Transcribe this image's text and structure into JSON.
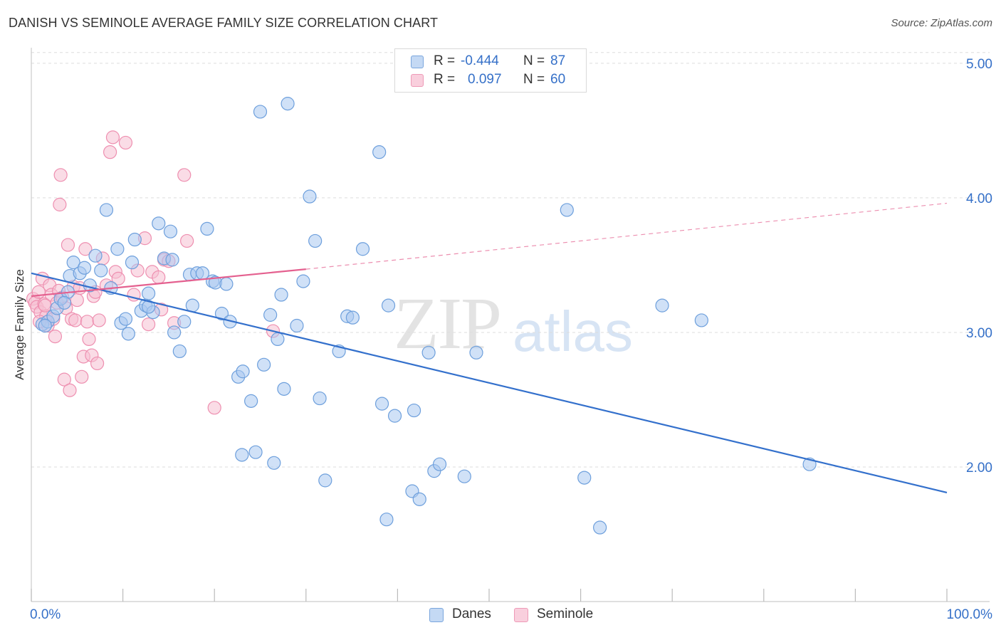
{
  "header": {
    "title": "DANISH VS SEMINOLE AVERAGE FAMILY SIZE CORRELATION CHART",
    "source": "Source: ZipAtlas.com"
  },
  "watermark": {
    "zip": "ZIP",
    "atlas": "atlas"
  },
  "legend": {
    "rows": [
      {
        "r_label": "R =",
        "r_value": "-0.444",
        "n_label": "N =",
        "n_value": "87"
      },
      {
        "r_label": "R =",
        "r_value": "0.097",
        "n_label": "N =",
        "n_value": "60"
      }
    ],
    "bottom": [
      "Danes",
      "Seminole"
    ]
  },
  "colors": {
    "danes_fill": "#a9c8f0",
    "danes_stroke": "#6d9fdc",
    "danes_line": "#3370cc",
    "seminole_fill": "#f6bfd2",
    "seminole_stroke": "#ee8fb0",
    "seminole_line": "#e4608f",
    "tick_label": "#3570c8"
  },
  "chart_data": {
    "type": "scatter",
    "title": "DANISH VS SEMINOLE AVERAGE FAMILY SIZE CORRELATION CHART",
    "xlabel": "",
    "ylabel": "Average Family Size",
    "xlim": [
      0,
      100
    ],
    "ylim": [
      1.0,
      5.1
    ],
    "x_tick_labels": [
      "0.0%",
      "100.0%"
    ],
    "y_ticks": [
      2.0,
      3.0,
      4.0,
      5.0
    ],
    "y_tick_labels": [
      "2.00",
      "3.00",
      "4.00",
      "5.00"
    ],
    "grid": true,
    "series": [
      {
        "name": "Danes",
        "r": -0.444,
        "n": 87,
        "trend": {
          "x": [
            0,
            100
          ],
          "y": [
            3.44,
            1.81
          ],
          "dashed_from": null
        },
        "points": [
          [
            1.2,
            3.06
          ],
          [
            1.8,
            3.08
          ],
          [
            2.4,
            3.12
          ],
          [
            2.8,
            3.18
          ],
          [
            3.2,
            3.25
          ],
          [
            4.0,
            3.3
          ],
          [
            1.5,
            3.05
          ],
          [
            3.6,
            3.22
          ],
          [
            4.2,
            3.42
          ],
          [
            4.6,
            3.52
          ],
          [
            5.3,
            3.44
          ],
          [
            5.8,
            3.48
          ],
          [
            6.4,
            3.35
          ],
          [
            7.0,
            3.57
          ],
          [
            7.6,
            3.46
          ],
          [
            8.2,
            3.91
          ],
          [
            8.7,
            3.33
          ],
          [
            9.4,
            3.62
          ],
          [
            9.8,
            3.07
          ],
          [
            10.3,
            3.1
          ],
          [
            10.6,
            2.99
          ],
          [
            11.0,
            3.52
          ],
          [
            11.3,
            3.69
          ],
          [
            12.0,
            3.16
          ],
          [
            12.5,
            3.2
          ],
          [
            12.8,
            3.29
          ],
          [
            13.3,
            3.15
          ],
          [
            13.9,
            3.81
          ],
          [
            14.5,
            3.55
          ],
          [
            15.2,
            3.75
          ],
          [
            15.4,
            3.54
          ],
          [
            15.6,
            3.0
          ],
          [
            16.2,
            2.86
          ],
          [
            16.7,
            3.08
          ],
          [
            17.3,
            3.43
          ],
          [
            17.6,
            3.2
          ],
          [
            18.1,
            3.44
          ],
          [
            18.7,
            3.44
          ],
          [
            19.2,
            3.77
          ],
          [
            19.8,
            3.38
          ],
          [
            20.1,
            3.37
          ],
          [
            20.8,
            3.14
          ],
          [
            21.3,
            3.36
          ],
          [
            21.7,
            3.08
          ],
          [
            22.6,
            2.67
          ],
          [
            23.1,
            2.71
          ],
          [
            23.0,
            2.09
          ],
          [
            24.0,
            2.49
          ],
          [
            24.5,
            2.11
          ],
          [
            25.0,
            4.64
          ],
          [
            25.4,
            2.76
          ],
          [
            26.1,
            3.13
          ],
          [
            26.5,
            2.03
          ],
          [
            26.9,
            2.95
          ],
          [
            27.3,
            3.28
          ],
          [
            27.6,
            2.58
          ],
          [
            28.0,
            4.7
          ],
          [
            29.0,
            3.05
          ],
          [
            29.7,
            3.38
          ],
          [
            30.4,
            4.01
          ],
          [
            31.0,
            3.68
          ],
          [
            31.5,
            2.51
          ],
          [
            32.1,
            1.9
          ],
          [
            33.6,
            2.86
          ],
          [
            34.5,
            3.12
          ],
          [
            35.1,
            3.11
          ],
          [
            36.2,
            3.62
          ],
          [
            38.0,
            4.34
          ],
          [
            38.3,
            2.47
          ],
          [
            38.8,
            1.61
          ],
          [
            39.0,
            3.2
          ],
          [
            39.7,
            2.38
          ],
          [
            41.6,
            1.82
          ],
          [
            41.8,
            2.42
          ],
          [
            42.4,
            1.76
          ],
          [
            43.4,
            2.85
          ],
          [
            44.0,
            1.97
          ],
          [
            44.6,
            2.02
          ],
          [
            47.3,
            1.93
          ],
          [
            48.6,
            2.85
          ],
          [
            58.5,
            3.91
          ],
          [
            60.4,
            1.92
          ],
          [
            62.1,
            1.55
          ],
          [
            68.9,
            3.2
          ],
          [
            73.2,
            3.09
          ],
          [
            85.0,
            2.02
          ],
          [
            12.8,
            3.19
          ]
        ]
      },
      {
        "name": "Seminole",
        "r": 0.097,
        "n": 60,
        "trend": {
          "x": [
            0,
            30
          ],
          "y": [
            3.27,
            3.47
          ],
          "dashed_to": [
            100,
            3.96
          ]
        },
        "points": [
          [
            0.2,
            3.25
          ],
          [
            0.4,
            3.22
          ],
          [
            0.6,
            3.19
          ],
          [
            0.8,
            3.3
          ],
          [
            1.0,
            3.15
          ],
          [
            1.2,
            3.4
          ],
          [
            1.4,
            3.21
          ],
          [
            1.6,
            3.12
          ],
          [
            1.8,
            3.05
          ],
          [
            2.0,
            3.35
          ],
          [
            2.2,
            3.28
          ],
          [
            2.4,
            3.1
          ],
          [
            2.6,
            2.97
          ],
          [
            2.8,
            3.22
          ],
          [
            3.0,
            3.31
          ],
          [
            3.1,
            3.95
          ],
          [
            3.2,
            4.17
          ],
          [
            3.4,
            3.26
          ],
          [
            3.6,
            2.65
          ],
          [
            3.8,
            3.18
          ],
          [
            4.0,
            3.65
          ],
          [
            4.2,
            2.57
          ],
          [
            4.4,
            3.1
          ],
          [
            4.6,
            3.34
          ],
          [
            4.8,
            3.09
          ],
          [
            5.0,
            3.24
          ],
          [
            5.3,
            3.33
          ],
          [
            5.5,
            2.67
          ],
          [
            5.7,
            2.82
          ],
          [
            5.9,
            3.62
          ],
          [
            6.1,
            3.08
          ],
          [
            6.3,
            2.95
          ],
          [
            6.6,
            2.83
          ],
          [
            6.8,
            3.27
          ],
          [
            7.0,
            3.3
          ],
          [
            7.2,
            2.77
          ],
          [
            7.4,
            3.09
          ],
          [
            7.8,
            3.55
          ],
          [
            8.2,
            3.35
          ],
          [
            8.6,
            4.34
          ],
          [
            8.9,
            4.45
          ],
          [
            9.2,
            3.45
          ],
          [
            9.5,
            3.4
          ],
          [
            10.3,
            4.41
          ],
          [
            11.2,
            3.28
          ],
          [
            11.6,
            3.46
          ],
          [
            12.4,
            3.7
          ],
          [
            12.8,
            3.06
          ],
          [
            13.2,
            3.45
          ],
          [
            13.9,
            3.41
          ],
          [
            14.2,
            3.17
          ],
          [
            14.5,
            3.54
          ],
          [
            15.0,
            3.53
          ],
          [
            15.6,
            3.07
          ],
          [
            16.7,
            4.17
          ],
          [
            17.0,
            3.68
          ],
          [
            20.0,
            2.44
          ],
          [
            26.4,
            3.01
          ],
          [
            1.5,
            3.2
          ],
          [
            0.9,
            3.08
          ]
        ]
      }
    ]
  }
}
